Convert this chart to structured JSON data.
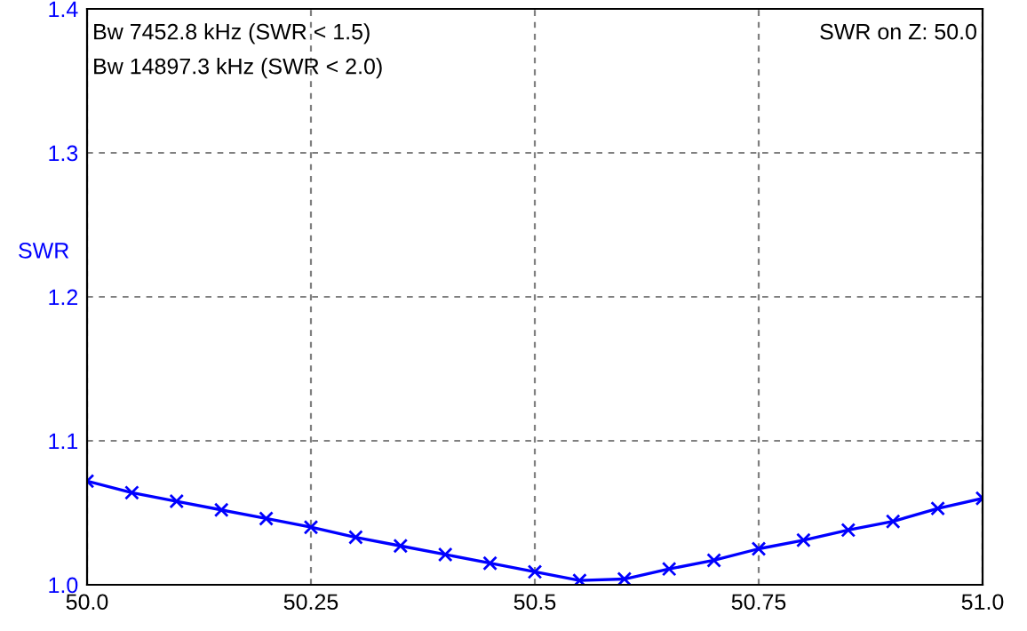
{
  "chart_data": {
    "type": "line",
    "ylabel": "SWR",
    "annotations": [
      "Bw 7452.8 kHz (SWR < 1.5)",
      "Bw 14897.3 kHz (SWR < 2.0)",
      "SWR on Z: 50.0"
    ],
    "x": [
      50.0,
      50.05,
      50.1,
      50.15,
      50.2,
      50.25,
      50.3,
      50.35,
      50.4,
      50.45,
      50.5,
      50.55,
      50.6,
      50.65,
      50.7,
      50.75,
      50.8,
      50.85,
      50.9,
      50.95,
      51.0
    ],
    "series": [
      {
        "color": "#0000ff",
        "values": [
          1.072,
          1.064,
          1.058,
          1.052,
          1.046,
          1.04,
          1.033,
          1.027,
          1.021,
          1.015,
          1.009,
          1.003,
          1.004,
          1.011,
          1.017,
          1.025,
          1.031,
          1.038,
          1.044,
          1.053,
          1.06
        ]
      }
    ],
    "xlim": [
      50.0,
      51.0
    ],
    "ylim": [
      1.0,
      1.4
    ],
    "xticks": [
      {
        "value": 50.0,
        "label": "50.0"
      },
      50.25,
      50.5,
      50.75,
      {
        "value": 51.0,
        "label": "51.0"
      }
    ],
    "yticks": [
      {
        "value": 1.0,
        "label": "1.0"
      },
      1.1,
      1.2,
      1.3,
      1.4
    ],
    "grid": true,
    "marker": "cross",
    "line_style": "solid",
    "legend": false
  }
}
